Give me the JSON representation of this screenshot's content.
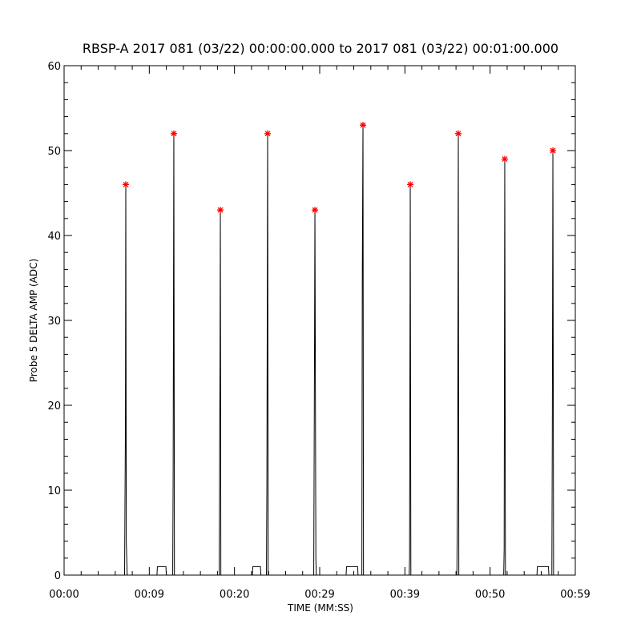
{
  "chart_data": {
    "type": "line",
    "title": "RBSP-A 2017 081 (03/22) 00:00:00.000 to 2017 081 (03/22) 00:01:00.000",
    "xlabel": "TIME (MM:SS)",
    "ylabel": "Probe 5 DELTA AMP (ADC)",
    "xlim": [
      0,
      60
    ],
    "ylim": [
      0,
      60
    ],
    "xticks": [
      {
        "value": 0,
        "label": "00:00"
      },
      {
        "value": 10,
        "label": "00:09"
      },
      {
        "value": 20,
        "label": "00:20"
      },
      {
        "value": 30,
        "label": "00:29"
      },
      {
        "value": 40,
        "label": "00:39"
      },
      {
        "value": 50,
        "label": "00:50"
      },
      {
        "value": 60,
        "label": "00:59"
      }
    ],
    "yticks": [
      0,
      10,
      20,
      30,
      40,
      50,
      60
    ],
    "minor_per_major": 5,
    "series": [
      {
        "color": "#000000",
        "mode": "line",
        "x": [
          0,
          7.1,
          7.2,
          7.24,
          7.3,
          7.4,
          10.9,
          10.95,
          11.95,
          12.0,
          12.75,
          12.8,
          12.88,
          12.95,
          18.2,
          18.3,
          18.34,
          18.4,
          22.1,
          22.15,
          23.05,
          23.1,
          23.75,
          23.8,
          23.89,
          23.95,
          29.3,
          29.38,
          29.44,
          29.55,
          29.6,
          33.1,
          33.15,
          34.45,
          34.5,
          34.95,
          35.0,
          35.08,
          35.14,
          40.5,
          40.55,
          40.63,
          40.7,
          46.1,
          46.2,
          46.27,
          46.33,
          51.6,
          51.65,
          51.72,
          51.8,
          55.5,
          55.55,
          56.85,
          56.9,
          57.25,
          57.3,
          57.37,
          57.45,
          60
        ],
        "values": [
          0,
          0,
          18,
          46,
          4,
          0,
          0,
          1,
          1,
          0,
          0,
          12,
          52,
          0,
          0,
          25,
          43,
          0,
          0,
          1,
          1,
          0,
          0,
          10,
          52,
          0,
          0,
          23,
          43,
          2,
          0,
          0,
          1,
          1,
          0,
          0,
          35,
          53,
          0,
          0,
          2,
          46,
          0,
          0,
          14,
          52,
          0,
          0,
          3,
          49,
          0,
          0,
          1,
          1,
          0,
          0,
          16,
          50,
          0,
          0
        ]
      },
      {
        "color": "#ff0000",
        "mode": "markers",
        "x": [
          7.24,
          12.88,
          18.34,
          23.89,
          29.44,
          35.08,
          40.63,
          46.27,
          51.72,
          57.37
        ],
        "values": [
          46,
          52,
          43,
          52,
          43,
          53,
          46,
          52,
          49,
          50
        ]
      }
    ]
  }
}
